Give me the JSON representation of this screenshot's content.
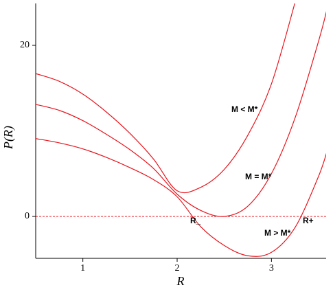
{
  "chart_data": {
    "type": "line",
    "xlabel": "R",
    "ylabel": "P(R)",
    "x": [
      0.5,
      0.75,
      1,
      1.25,
      1.5,
      1.75,
      2,
      2.25,
      2.5,
      2.75,
      3,
      3.25,
      3.5,
      3.6
    ],
    "series": [
      {
        "color": "#e8141c",
        "values": [
          16.7,
          15.8,
          14.3,
          12.2,
          9.7,
          6.7,
          3.0,
          3.4,
          5.5,
          9.5,
          15.5,
          25,
          null,
          null
        ]
      },
      {
        "color": "#e8141c",
        "values": [
          13.1,
          12.4,
          11.2,
          9.6,
          7.8,
          5.6,
          2.6,
          0.7,
          0,
          1.2,
          5,
          11.5,
          20.5,
          24.7
        ]
      },
      {
        "color": "#e8141c",
        "values": [
          9.1,
          8.6,
          7.9,
          6.9,
          5.7,
          4.3,
          2.3,
          -1.2,
          -3.4,
          -4.6,
          -4.2,
          -1.3,
          4.7,
          8.0
        ]
      }
    ],
    "reference_line": 0,
    "annotations": [
      "M < M*",
      "M = M*",
      "M > M*",
      "R_",
      "R+"
    ],
    "xlim": [
      0.5,
      3.58
    ],
    "ylim": [
      -4.9,
      24.9
    ],
    "xticks": [
      1,
      2,
      3
    ],
    "yticks": [
      0,
      20
    ]
  }
}
